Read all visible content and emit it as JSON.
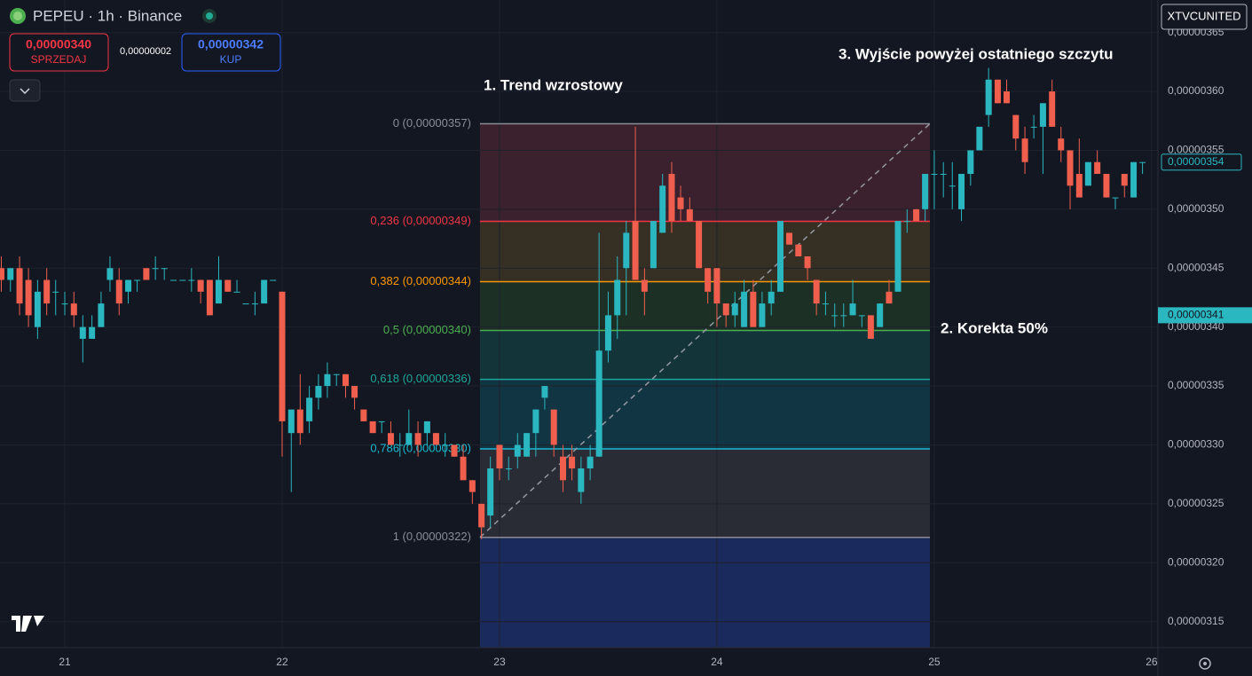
{
  "header": {
    "symbol": "PEPEU · 1h · Binance",
    "sell_price": "0,00000340",
    "sell_label": "SPRZEDAJ",
    "spread": "0,00000002",
    "buy_price": "0,00000342",
    "buy_label": "KUP",
    "account": "XTVCUNITED"
  },
  "chart_data": {
    "type": "candlestick",
    "x": [
      20.708,
      20.75,
      20.792,
      20.833,
      20.875,
      20.917,
      20.958,
      21,
      21.042,
      21.083,
      21.125,
      21.167,
      21.208,
      21.25,
      21.292,
      21.333,
      21.375,
      21.417,
      21.458,
      21.5,
      21.542,
      21.583,
      21.625,
      21.667,
      21.708,
      21.75,
      21.792,
      21.833,
      21.875,
      21.917,
      21.958,
      22,
      22.042,
      22.083,
      22.125,
      22.167,
      22.208,
      22.25,
      22.292,
      22.333,
      22.375,
      22.417,
      22.458,
      22.5,
      22.542,
      22.583,
      22.625,
      22.667,
      22.708,
      22.75,
      22.792,
      22.833,
      22.875,
      22.917,
      22.958,
      23,
      23.042,
      23.083,
      23.125,
      23.167,
      23.208,
      23.25,
      23.292,
      23.333,
      23.375,
      23.417,
      23.458,
      23.5,
      23.542,
      23.583,
      23.625,
      23.667,
      23.708,
      23.75,
      23.792,
      23.833,
      23.875,
      23.917,
      23.958,
      24,
      24.042,
      24.083,
      24.125,
      24.167,
      24.208,
      24.25,
      24.292,
      24.333,
      24.375,
      24.417,
      24.458,
      24.5,
      24.542,
      24.583,
      24.625,
      24.667,
      24.708,
      24.75,
      24.792,
      24.833,
      24.875,
      24.917,
      24.958,
      25,
      25.042,
      25.083,
      25.125,
      25.167,
      25.208,
      25.25,
      25.292,
      25.333,
      25.375,
      25.417,
      25.458,
      25.5,
      25.542,
      25.583,
      25.625,
      25.667,
      25.708,
      25.75,
      25.792,
      25.833,
      25.875,
      25.917,
      25.958
    ],
    "open": [
      3.45e-06,
      3.44e-06,
      3.45e-06,
      3.44e-06,
      3.4e-06,
      3.44e-06,
      3.43e-06,
      3.42e-06,
      3.42e-06,
      3.39e-06,
      3.39e-06,
      3.4e-06,
      3.44e-06,
      3.44e-06,
      3.43e-06,
      3.44e-06,
      3.45e-06,
      3.45e-06,
      3.45e-06,
      3.44e-06,
      3.44e-06,
      3.44e-06,
      3.44e-06,
      3.44e-06,
      3.42e-06,
      3.44e-06,
      3.43e-06,
      3.42e-06,
      3.42e-06,
      3.42e-06,
      3.44e-06,
      3.43e-06,
      3.31e-06,
      3.33e-06,
      3.32e-06,
      3.34e-06,
      3.35e-06,
      3.36e-06,
      3.36e-06,
      3.35e-06,
      3.33e-06,
      3.32e-06,
      3.32e-06,
      3.31e-06,
      3.3e-06,
      3.3e-06,
      3.31e-06,
      3.31e-06,
      3.31e-06,
      3.3e-06,
      3.3e-06,
      3.29e-06,
      3.27e-06,
      3.25e-06,
      3.24e-06,
      3.3e-06,
      3.28e-06,
      3.29e-06,
      3.29e-06,
      3.31e-06,
      3.34e-06,
      3.33e-06,
      3.29e-06,
      3.29e-06,
      3.26e-06,
      3.28e-06,
      3.29e-06,
      3.38e-06,
      3.41e-06,
      3.45e-06,
      3.49e-06,
      3.44e-06,
      3.45e-06,
      3.48e-06,
      3.53e-06,
      3.51e-06,
      3.5e-06,
      3.49e-06,
      3.45e-06,
      3.45e-06,
      3.42e-06,
      3.41e-06,
      3.4e-06,
      3.43e-06,
      3.4e-06,
      3.42e-06,
      3.43e-06,
      3.48e-06,
      3.47e-06,
      3.46e-06,
      3.44e-06,
      3.42e-06,
      3.41e-06,
      3.41e-06,
      3.41e-06,
      3.41e-06,
      3.41e-06,
      3.4e-06,
      3.43e-06,
      3.43e-06,
      3.49e-06,
      3.5e-06,
      3.5e-06,
      3.53e-06,
      3.53e-06,
      3.52e-06,
      3.5e-06,
      3.53e-06,
      3.55e-06,
      3.58e-06,
      3.61e-06,
      3.6e-06,
      3.58e-06,
      3.56e-06,
      3.57e-06,
      3.57e-06,
      3.6e-06,
      3.56e-06,
      3.55e-06,
      3.53e-06,
      3.52e-06,
      3.54e-06,
      3.53e-06,
      3.51e-06,
      3.53e-06,
      3.51e-06,
      3.54e-06
    ],
    "high": [
      3.46e-06,
      3.45e-06,
      3.46e-06,
      3.45e-06,
      3.44e-06,
      3.45e-06,
      3.44e-06,
      3.43e-06,
      3.43e-06,
      3.41e-06,
      3.41e-06,
      3.43e-06,
      3.46e-06,
      3.45e-06,
      3.44e-06,
      3.44e-06,
      3.45e-06,
      3.46e-06,
      3.45e-06,
      3.44e-06,
      3.44e-06,
      3.45e-06,
      3.44e-06,
      3.44e-06,
      3.46e-06,
      3.44e-06,
      3.44e-06,
      3.42e-06,
      3.43e-06,
      3.44e-06,
      3.44e-06,
      3.43e-06,
      3.33e-06,
      3.36e-06,
      3.35e-06,
      3.36e-06,
      3.37e-06,
      3.36e-06,
      3.36e-06,
      3.35e-06,
      3.33e-06,
      3.32e-06,
      3.32e-06,
      3.32e-06,
      3.31e-06,
      3.33e-06,
      3.32e-06,
      3.32e-06,
      3.31e-06,
      3.31e-06,
      3.3e-06,
      3.3e-06,
      3.27e-06,
      3.25e-06,
      3.29e-06,
      3.3e-06,
      3.29e-06,
      3.31e-06,
      3.31e-06,
      3.33e-06,
      3.35e-06,
      3.33e-06,
      3.3e-06,
      3.3e-06,
      3.29e-06,
      3.3e-06,
      3.48e-06,
      3.43e-06,
      3.46e-06,
      3.49e-06,
      3.57e-06,
      3.45e-06,
      3.49e-06,
      3.53e-06,
      3.54e-06,
      3.52e-06,
      3.51e-06,
      3.49e-06,
      3.45e-06,
      3.45e-06,
      3.42e-06,
      3.43e-06,
      3.44e-06,
      3.44e-06,
      3.43e-06,
      3.44e-06,
      3.49e-06,
      3.48e-06,
      3.47e-06,
      3.46e-06,
      3.44e-06,
      3.43e-06,
      3.42e-06,
      3.42e-06,
      3.44e-06,
      3.41e-06,
      3.41e-06,
      3.42e-06,
      3.44e-06,
      3.49e-06,
      3.5e-06,
      3.5e-06,
      3.53e-06,
      3.55e-06,
      3.54e-06,
      3.54e-06,
      3.53e-06,
      3.55e-06,
      3.57e-06,
      3.62e-06,
      3.61e-06,
      3.61e-06,
      3.58e-06,
      3.57e-06,
      3.58e-06,
      3.59e-06,
      3.61e-06,
      3.57e-06,
      3.55e-06,
      3.56e-06,
      3.54e-06,
      3.55e-06,
      3.53e-06,
      3.51e-06,
      3.53e-06,
      3.54e-06,
      3.54e-06
    ],
    "low": [
      3.43e-06,
      3.43e-06,
      3.41e-06,
      3.4e-06,
      3.39e-06,
      3.41e-06,
      3.41e-06,
      3.41e-06,
      3.4e-06,
      3.37e-06,
      3.39e-06,
      3.4e-06,
      3.43e-06,
      3.41e-06,
      3.42e-06,
      3.43e-06,
      3.44e-06,
      3.44e-06,
      3.44e-06,
      3.44e-06,
      3.44e-06,
      3.43e-06,
      3.42e-06,
      3.41e-06,
      3.42e-06,
      3.43e-06,
      3.43e-06,
      3.42e-06,
      3.41e-06,
      3.42e-06,
      3.44e-06,
      3.29e-06,
      3.26e-06,
      3.3e-06,
      3.31e-06,
      3.33e-06,
      3.34e-06,
      3.35e-06,
      3.34e-06,
      3.33e-06,
      3.32e-06,
      3.31e-06,
      3.31e-06,
      3.3e-06,
      3.29e-06,
      3.3e-06,
      3.29e-06,
      3.3e-06,
      3.3e-06,
      3.29e-06,
      3.29e-06,
      3.27e-06,
      3.25e-06,
      3.22e-06,
      3.23e-06,
      3.27e-06,
      3.27e-06,
      3.28e-06,
      3.29e-06,
      3.29e-06,
      3.33e-06,
      3.29e-06,
      3.26e-06,
      3.27e-06,
      3.25e-06,
      3.27e-06,
      3.29e-06,
      3.37e-06,
      3.39e-06,
      3.41e-06,
      3.44e-06,
      3.41e-06,
      3.45e-06,
      3.48e-06,
      3.48e-06,
      3.49e-06,
      3.49e-06,
      3.45e-06,
      3.42e-06,
      3.4e-06,
      3.4e-06,
      3.4e-06,
      3.4e-06,
      3.4e-06,
      3.4e-06,
      3.41e-06,
      3.43e-06,
      3.47e-06,
      3.46e-06,
      3.44e-06,
      3.41e-06,
      3.41e-06,
      3.4e-06,
      3.4e-06,
      3.41e-06,
      3.4e-06,
      3.39e-06,
      3.4e-06,
      3.42e-06,
      3.43e-06,
      3.48e-06,
      3.49e-06,
      3.49e-06,
      3.5e-06,
      3.51e-06,
      3.5e-06,
      3.49e-06,
      3.52e-06,
      3.55e-06,
      3.57e-06,
      3.59e-06,
      3.59e-06,
      3.55e-06,
      3.53e-06,
      3.56e-06,
      3.53e-06,
      3.57e-06,
      3.54e-06,
      3.5e-06,
      3.51e-06,
      3.52e-06,
      3.53e-06,
      3.51e-06,
      3.5e-06,
      3.51e-06,
      3.51e-06,
      3.53e-06
    ],
    "close": [
      3.44e-06,
      3.45e-06,
      3.42e-06,
      3.41e-06,
      3.43e-06,
      3.42e-06,
      3.43e-06,
      3.42e-06,
      3.41e-06,
      3.4e-06,
      3.4e-06,
      3.42e-06,
      3.45e-06,
      3.42e-06,
      3.44e-06,
      3.44e-06,
      3.44e-06,
      3.45e-06,
      3.45e-06,
      3.44e-06,
      3.44e-06,
      3.44e-06,
      3.43e-06,
      3.41e-06,
      3.44e-06,
      3.43e-06,
      3.43e-06,
      3.42e-06,
      3.42e-06,
      3.44e-06,
      3.44e-06,
      3.32e-06,
      3.33e-06,
      3.31e-06,
      3.34e-06,
      3.35e-06,
      3.36e-06,
      3.36e-06,
      3.35e-06,
      3.34e-06,
      3.32e-06,
      3.31e-06,
      3.32e-06,
      3.3e-06,
      3.3e-06,
      3.31e-06,
      3.3e-06,
      3.32e-06,
      3.3e-06,
      3.3e-06,
      3.29e-06,
      3.27e-06,
      3.26e-06,
      3.23e-06,
      3.28e-06,
      3.28e-06,
      3.28e-06,
      3.3e-06,
      3.31e-06,
      3.33e-06,
      3.35e-06,
      3.3e-06,
      3.27e-06,
      3.28e-06,
      3.28e-06,
      3.29e-06,
      3.38e-06,
      3.41e-06,
      3.44e-06,
      3.48e-06,
      3.44e-06,
      3.43e-06,
      3.49e-06,
      3.52e-06,
      3.49e-06,
      3.5e-06,
      3.49e-06,
      3.45e-06,
      3.43e-06,
      3.42e-06,
      3.41e-06,
      3.42e-06,
      3.43e-06,
      3.4e-06,
      3.42e-06,
      3.43e-06,
      3.49e-06,
      3.47e-06,
      3.46e-06,
      3.45e-06,
      3.42e-06,
      3.42e-06,
      3.41e-06,
      3.41e-06,
      3.42e-06,
      3.41e-06,
      3.39e-06,
      3.42e-06,
      3.42e-06,
      3.49e-06,
      3.49e-06,
      3.49e-06,
      3.53e-06,
      3.53e-06,
      3.53e-06,
      3.52e-06,
      3.53e-06,
      3.55e-06,
      3.57e-06,
      3.61e-06,
      3.59e-06,
      3.59e-06,
      3.56e-06,
      3.54e-06,
      3.57e-06,
      3.59e-06,
      3.57e-06,
      3.55e-06,
      3.52e-06,
      3.51e-06,
      3.54e-06,
      3.53e-06,
      3.51e-06,
      3.51e-06,
      3.52e-06,
      3.54e-06,
      3.54e-06
    ],
    "up_color": "#2ab7c0",
    "down_color": "#f05f4d",
    "xlim": [
      20.702,
      26.029
    ],
    "ylim": [
      3.1279e-06,
      3.6776e-06
    ],
    "xticks": [
      21,
      22,
      23,
      24,
      25,
      26
    ],
    "yticks": [
      {
        "value": 3.15e-06,
        "label": "0,00000315"
      },
      {
        "value": 3.2e-06,
        "label": "0,00000320"
      },
      {
        "value": 3.25e-06,
        "label": "0,00000325"
      },
      {
        "value": 3.3e-06,
        "label": "0,00000330"
      },
      {
        "value": 3.35e-06,
        "label": "0,00000335"
      },
      {
        "value": 3.4e-06,
        "label": "0,00000340"
      },
      {
        "value": 3.45e-06,
        "label": "0,00000345"
      },
      {
        "value": 3.5e-06,
        "label": "0,00000350"
      },
      {
        "value": 3.55e-06,
        "label": "0,00000355"
      },
      {
        "value": 3.6e-06,
        "label": "0,00000360"
      },
      {
        "value": 3.65e-06,
        "label": "0,00000365"
      }
    ],
    "grid": true,
    "fib": {
      "x": [
        22.91,
        24.98
      ],
      "levels": [
        {
          "label": "0 (0,00000357)",
          "value": 3.5726e-06,
          "color": "#8a8d96",
          "fill": "#3a212d"
        },
        {
          "label": "0,236 (0,00000349)",
          "value": 3.4897e-06,
          "color": "#f23645",
          "fill": "#362f24"
        },
        {
          "label": "0,382 (0,00000344)",
          "value": 3.4385e-06,
          "color": "#ff9800",
          "fill": "#1d3026"
        },
        {
          "label": "0,5 (0,00000340)",
          "value": 3.3971e-06,
          "color": "#4caf50",
          "fill": "#13353a"
        },
        {
          "label": "0,618 (0,00000336)",
          "value": 3.3556e-06,
          "color": "#1ea69a",
          "fill": "#123544"
        },
        {
          "label": "0,786 (0,00000330)",
          "value": 3.2966e-06,
          "color": "#17b8d0",
          "fill": "#2a2c35"
        },
        {
          "label": "1 (0,00000322)",
          "value": 3.2215e-06,
          "color": "#8a8d96",
          "fill": "#1b2a5c"
        }
      ]
    },
    "annotations": [
      "1. Trend wzrostowy",
      "2. Korekta 50%",
      "3. Wyjście powyżej ostatniego szczytu"
    ],
    "price_tags": [
      {
        "value": 3.54e-06,
        "label": "0,00000354"
      },
      {
        "value": 3.41e-06,
        "label": "0,00000341"
      }
    ]
  }
}
